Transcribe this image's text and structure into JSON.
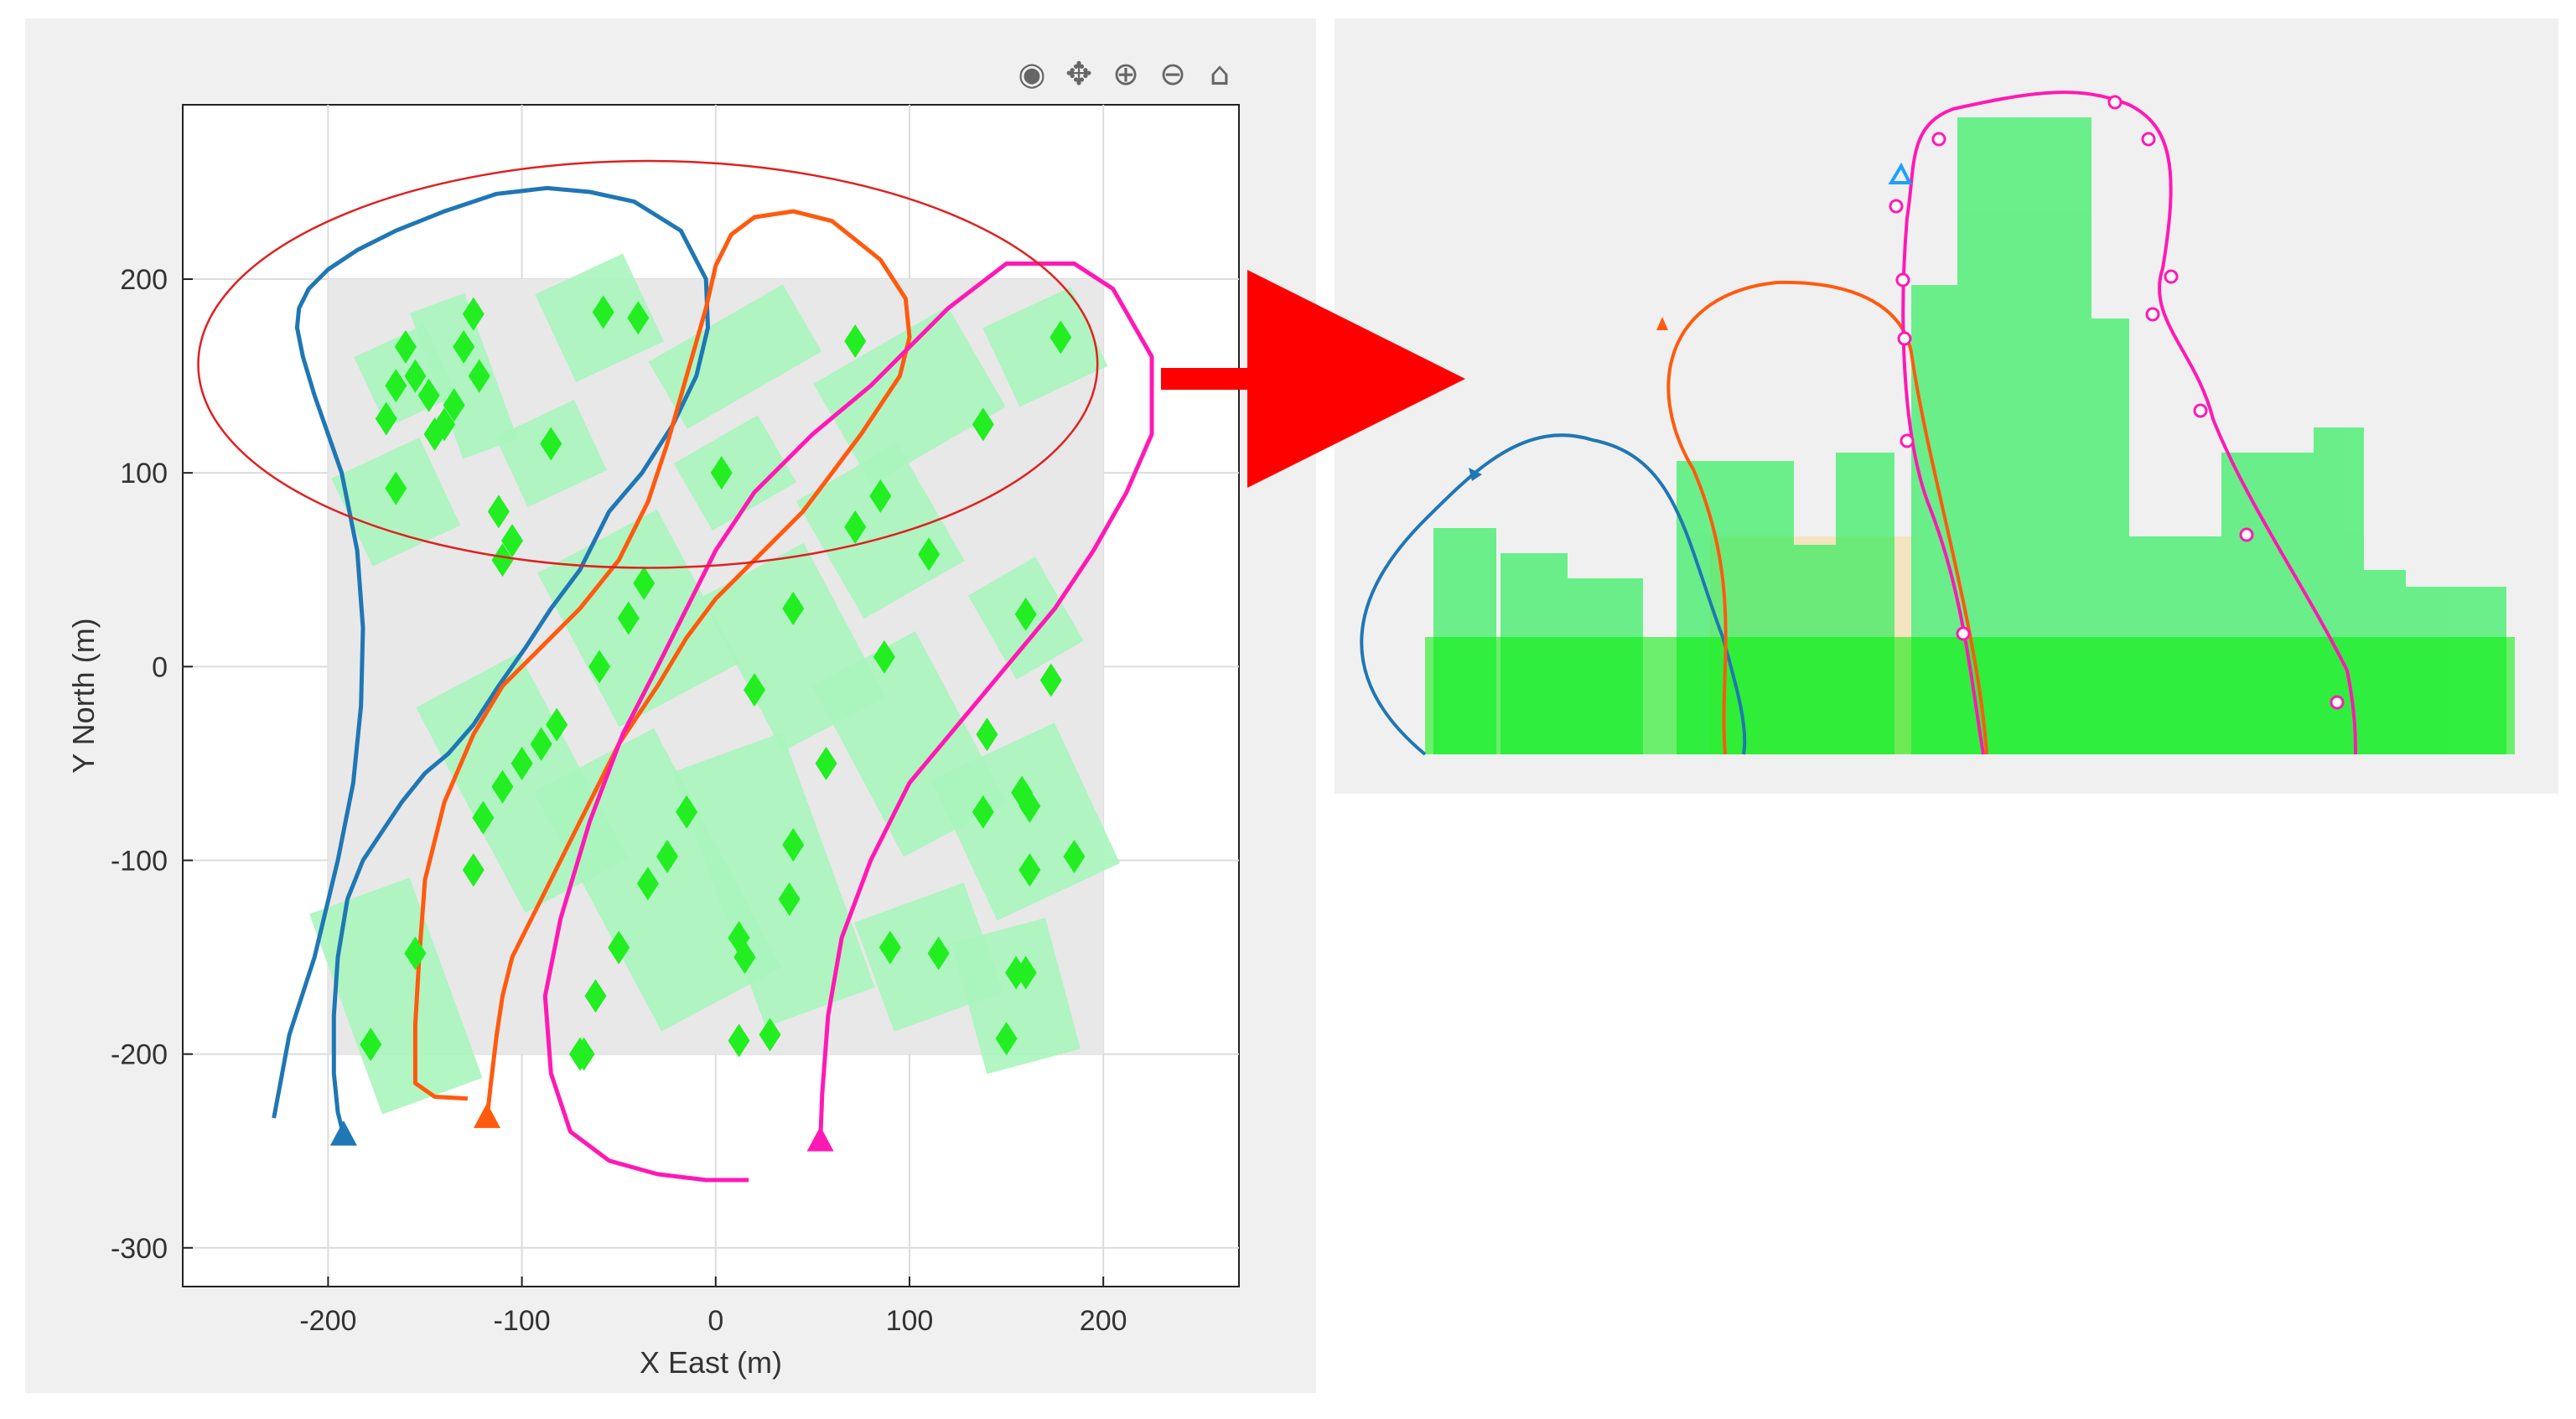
{
  "toolbar": {
    "icons": [
      "eye-slash-icon",
      "data-cursor-icon",
      "zoom-in-icon",
      "zoom-out-icon",
      "home-icon"
    ],
    "glyphs": [
      "◉",
      "✥",
      "⊕",
      "⊖",
      "⌂"
    ]
  },
  "colors": {
    "trajectory_1": "#1f77b4",
    "trajectory_2": "#ff5a0e",
    "trajectory_3": "#ff19b4",
    "building_fill": "#a9f5bd",
    "building_3d": "#22ee55",
    "target": "#22ee22",
    "highlight_ellipse": "#e02020",
    "arrow": "#ff0000",
    "ground": "#e8e8e8"
  },
  "chart_data": [
    {
      "type": "scatter",
      "title": "",
      "xlabel": "X East (m)",
      "ylabel": "Y North (m)",
      "xlim": [
        -275,
        270
      ],
      "ylim": [
        -320,
        290
      ],
      "grid": true,
      "xticks": [
        -200,
        -100,
        0,
        100,
        200
      ],
      "yticks": [
        -300,
        -200,
        -100,
        0,
        100,
        200
      ],
      "xtick_labels": [
        "-200",
        "-100",
        "0",
        "100",
        "200"
      ],
      "ytick_labels": [
        "-300",
        "-200",
        "-100",
        "0",
        "100",
        "200"
      ],
      "ground": {
        "x": [
          -200,
          200
        ],
        "y": [
          -200,
          200
        ]
      },
      "buildings": [
        {
          "cx": -160,
          "cy": 150,
          "w": 40,
          "h": 40,
          "rot": -25
        },
        {
          "cx": -130,
          "cy": 150,
          "w": 30,
          "h": 80,
          "rot": -20
        },
        {
          "cx": -60,
          "cy": 180,
          "w": 50,
          "h": 50,
          "rot": -25
        },
        {
          "cx": -85,
          "cy": 110,
          "w": 45,
          "h": 40,
          "rot": -25
        },
        {
          "cx": -165,
          "cy": 85,
          "w": 50,
          "h": 50,
          "rot": -25
        },
        {
          "cx": 10,
          "cy": 160,
          "w": 80,
          "h": 40,
          "rot": -30
        },
        {
          "cx": 10,
          "cy": 100,
          "w": 50,
          "h": 40,
          "rot": -30
        },
        {
          "cx": 100,
          "cy": 140,
          "w": 80,
          "h": 60,
          "rot": -30
        },
        {
          "cx": 170,
          "cy": 165,
          "w": 50,
          "h": 45,
          "rot": -25
        },
        {
          "cx": 85,
          "cy": 70,
          "w": 60,
          "h": 70,
          "rot": -30
        },
        {
          "cx": 160,
          "cy": 25,
          "w": 40,
          "h": 50,
          "rot": -30
        },
        {
          "cx": -40,
          "cy": 25,
          "w": 70,
          "h": 90,
          "rot": -28
        },
        {
          "cx": 40,
          "cy": 10,
          "w": 60,
          "h": 90,
          "rot": -28
        },
        {
          "cx": -100,
          "cy": -60,
          "w": 60,
          "h": 120,
          "rot": -28
        },
        {
          "cx": -30,
          "cy": -110,
          "w": 70,
          "h": 140,
          "rot": -28
        },
        {
          "cx": 30,
          "cy": -110,
          "w": 60,
          "h": 140,
          "rot": -20
        },
        {
          "cx": 100,
          "cy": -40,
          "w": 60,
          "h": 100,
          "rot": -28
        },
        {
          "cx": 160,
          "cy": -80,
          "w": 70,
          "h": 80,
          "rot": -25
        },
        {
          "cx": -165,
          "cy": -170,
          "w": 55,
          "h": 110,
          "rot": -20
        },
        {
          "cx": 110,
          "cy": -150,
          "w": 60,
          "h": 60,
          "rot": -20
        },
        {
          "cx": 155,
          "cy": -170,
          "w": 50,
          "h": 70,
          "rot": -15
        }
      ],
      "targets": {
        "x": [
          -160,
          -165,
          -170,
          -155,
          -145,
          -135,
          -125,
          -130,
          -140,
          -148,
          -122,
          -85,
          -58,
          -40,
          -165,
          -112,
          -105,
          -110,
          72,
          138,
          178,
          3,
          85,
          72,
          110,
          -60,
          -45,
          -37,
          40,
          20,
          87,
          160,
          173,
          -82,
          -90,
          -100,
          -110,
          -120,
          -125,
          -15,
          -25,
          -35,
          40,
          38,
          12,
          15,
          28,
          57,
          140,
          138,
          158,
          162,
          162,
          185,
          160,
          -50,
          -62,
          -68,
          12,
          -155,
          -178,
          90,
          115,
          155,
          150,
          -70
        ],
        "y": [
          165,
          145,
          128,
          150,
          120,
          135,
          182,
          165,
          125,
          140,
          150,
          115,
          183,
          180,
          92,
          80,
          65,
          55,
          168,
          125,
          170,
          100,
          88,
          72,
          58,
          0,
          25,
          43,
          30,
          -12,
          5,
          27,
          -7,
          -30,
          -40,
          -50,
          -62,
          -78,
          -105,
          -75,
          -98,
          -112,
          -92,
          -120,
          -140,
          -150,
          -190,
          -50,
          -35,
          -75,
          -65,
          -72,
          -105,
          -98,
          -158,
          -145,
          -170,
          -200,
          -193,
          -148,
          -195,
          -145,
          -148,
          -158,
          -192,
          -200
        ]
      },
      "ellipse": {
        "cx": -35,
        "cy": 156,
        "rx": 232,
        "ry": 105
      },
      "series": [
        {
          "color": "#1f77b4",
          "start": [
            -192,
            -242
          ],
          "x": [
            -228,
            -220,
            -207,
            -195,
            -187,
            -183,
            -182,
            -185,
            -193,
            -200,
            -207,
            -213,
            -216,
            -215,
            -210,
            -200,
            -185,
            -165,
            -140,
            -113,
            -87,
            -65,
            -42,
            -18,
            -5,
            -4,
            -10,
            -22,
            -38,
            -55,
            -70,
            -85,
            -98,
            -112,
            -125,
            -138,
            -150,
            -162,
            -172,
            -182,
            -190,
            -195,
            -197,
            -197,
            -195,
            -192
          ],
          "y": [
            -233,
            -190,
            -150,
            -100,
            -60,
            -20,
            20,
            60,
            100,
            120,
            140,
            160,
            175,
            185,
            195,
            205,
            215,
            225,
            235,
            244,
            247,
            245,
            240,
            225,
            200,
            175,
            150,
            125,
            100,
            80,
            50,
            30,
            10,
            -10,
            -30,
            -45,
            -55,
            -70,
            -85,
            -100,
            -120,
            -150,
            -180,
            -210,
            -230,
            -242
          ]
        },
        {
          "color": "#ff5a0e",
          "start": [
            -118,
            -233
          ],
          "x": [
            -128,
            -145,
            -155,
            -155,
            -153,
            -150,
            -140,
            -125,
            -110,
            -90,
            -70,
            -50,
            -35,
            -25,
            -15,
            -5,
            0,
            8,
            20,
            40,
            60,
            85,
            98,
            100,
            95,
            75,
            60,
            45,
            20,
            0,
            -15,
            -30,
            -50,
            -70,
            -90,
            -105,
            -110,
            -113,
            -116,
            -118
          ],
          "y": [
            -223,
            -222,
            -215,
            -185,
            -150,
            -110,
            -70,
            -35,
            -10,
            10,
            30,
            55,
            85,
            115,
            150,
            185,
            207,
            223,
            232,
            235,
            230,
            210,
            190,
            170,
            150,
            120,
            100,
            80,
            55,
            35,
            15,
            -10,
            -40,
            -80,
            -120,
            -150,
            -170,
            -190,
            -215,
            -233
          ]
        },
        {
          "color": "#ff19b4",
          "start": [
            54,
            -245
          ],
          "x": [
            17,
            -5,
            -30,
            -55,
            -75,
            -85,
            -88,
            -80,
            -65,
            -48,
            -30,
            -15,
            0,
            20,
            50,
            80,
            120,
            150,
            185,
            205,
            225,
            225,
            212,
            195,
            175,
            150,
            125,
            100,
            80,
            65,
            58,
            55,
            54
          ],
          "y": [
            -265,
            -265,
            -262,
            -255,
            -240,
            -210,
            -170,
            -130,
            -80,
            -35,
            0,
            30,
            60,
            90,
            120,
            145,
            185,
            208,
            208,
            195,
            160,
            120,
            90,
            60,
            30,
            0,
            -30,
            -60,
            -100,
            -140,
            -180,
            -220,
            -245
          ]
        }
      ]
    },
    {
      "type": "area",
      "title": "",
      "xlabel": "",
      "ylabel": "",
      "view": "3d-perspective",
      "series": [
        {
          "color": "#1f77b4",
          "marker": "triangle"
        },
        {
          "color": "#ff5a0e",
          "marker": "triangle"
        },
        {
          "color": "#ff19b4",
          "marker": "circle"
        }
      ]
    }
  ]
}
